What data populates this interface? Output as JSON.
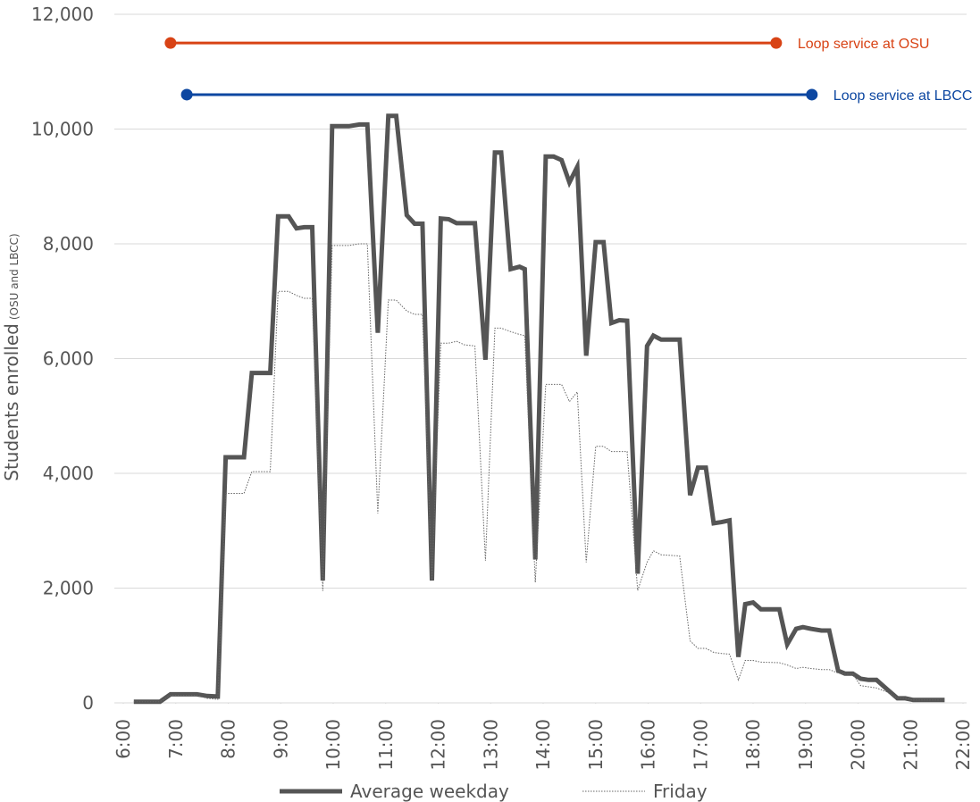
{
  "chart_data": {
    "type": "line",
    "ylabel": "Students enrolled",
    "ylabel_note": "(OSU and LBCC)",
    "x": [
      6.2,
      6.7,
      6.9,
      7.4,
      7.6,
      7.8,
      7.95,
      8.3,
      8.45,
      8.8,
      8.95,
      9.15,
      9.3,
      9.45,
      9.6,
      9.8,
      9.98,
      10.3,
      10.5,
      10.65,
      10.85,
      11.05,
      11.2,
      11.4,
      11.55,
      11.7,
      11.88,
      12.05,
      12.2,
      12.35,
      12.5,
      12.7,
      12.9,
      13.08,
      13.2,
      13.38,
      13.55,
      13.65,
      13.85,
      14.05,
      14.2,
      14.35,
      14.5,
      14.65,
      14.82,
      15.0,
      15.15,
      15.3,
      15.45,
      15.6,
      15.8,
      15.98,
      16.1,
      16.25,
      16.6,
      16.8,
      16.95,
      17.1,
      17.25,
      17.4,
      17.55,
      17.72,
      17.85,
      18.0,
      18.15,
      18.5,
      18.65,
      18.82,
      18.95,
      19.1,
      19.3,
      19.45,
      19.62,
      19.75,
      19.9,
      20.05,
      20.2,
      20.35,
      20.55,
      20.75,
      20.9,
      21.05,
      21.65
    ],
    "series": [
      {
        "name": "Average weekday",
        "color": "#555555",
        "style": "solid",
        "values": [
          20,
          20,
          150,
          150,
          120,
          110,
          4280,
          4280,
          5750,
          5750,
          8480,
          8480,
          8270,
          8290,
          8290,
          2130,
          10050,
          10050,
          10080,
          10080,
          6450,
          10230,
          10230,
          8500,
          8350,
          8350,
          2130,
          8440,
          8430,
          8360,
          8360,
          8360,
          5980,
          9590,
          9590,
          7560,
          7600,
          7560,
          2500,
          9520,
          9520,
          9460,
          9070,
          9340,
          6050,
          8030,
          8030,
          6620,
          6670,
          6660,
          2250,
          6220,
          6400,
          6330,
          6330,
          3620,
          4100,
          4100,
          3130,
          3150,
          3180,
          800,
          1720,
          1750,
          1630,
          1630,
          1020,
          1290,
          1320,
          1290,
          1260,
          1260,
          560,
          510,
          510,
          420,
          400,
          400,
          240,
          80,
          80,
          50,
          50
        ]
      },
      {
        "name": "Friday",
        "color": "#666666",
        "style": "dotted",
        "values": [
          20,
          20,
          130,
          130,
          80,
          60,
          3650,
          3650,
          4030,
          4030,
          7170,
          7170,
          7100,
          7050,
          7050,
          1950,
          7970,
          7970,
          8000,
          8000,
          3300,
          7020,
          7020,
          6830,
          6770,
          6770,
          2150,
          6270,
          6270,
          6300,
          6240,
          6220,
          2480,
          6530,
          6530,
          6470,
          6420,
          6400,
          2100,
          5550,
          5550,
          5550,
          5250,
          5420,
          2450,
          4470,
          4470,
          4380,
          4380,
          4380,
          1960,
          2450,
          2650,
          2580,
          2560,
          1080,
          950,
          950,
          880,
          860,
          850,
          400,
          740,
          740,
          710,
          700,
          660,
          600,
          620,
          600,
          580,
          580,
          520,
          500,
          500,
          300,
          280,
          260,
          190,
          80,
          80,
          50,
          50
        ]
      }
    ],
    "annotations": [
      {
        "label": "Loop service at OSU",
        "color": "#d84315",
        "x": [
          6.9,
          18.44
        ],
        "y": 11500
      },
      {
        "label": "Loop service at LBCC",
        "color": "#0d47a1",
        "x": [
          7.21,
          19.12
        ],
        "y": 10600
      }
    ],
    "xlim": [
      6,
      22
    ],
    "xticks": [
      {
        "value": 6,
        "label": "6:00"
      },
      {
        "value": 7,
        "label": "7:00"
      },
      {
        "value": 8,
        "label": "8:00"
      },
      {
        "value": 9,
        "label": "9:00"
      },
      {
        "value": 10,
        "label": "10:00"
      },
      {
        "value": 11,
        "label": "11:00"
      },
      {
        "value": 12,
        "label": "12:00"
      },
      {
        "value": 13,
        "label": "13:00"
      },
      {
        "value": 14,
        "label": "14:00"
      },
      {
        "value": 15,
        "label": "15:00"
      },
      {
        "value": 16,
        "label": "16:00"
      },
      {
        "value": 17,
        "label": "17:00"
      },
      {
        "value": 18,
        "label": "18:00"
      },
      {
        "value": 19,
        "label": "19:00"
      },
      {
        "value": 20,
        "label": "20:00"
      },
      {
        "value": 21,
        "label": "21:00"
      },
      {
        "value": 22,
        "label": "22:00"
      }
    ],
    "ylim": [
      0,
      12000
    ],
    "yticks": [
      0,
      {
        "value": 2000,
        "label": "2,000"
      },
      {
        "value": 4000,
        "label": "4,000"
      },
      {
        "value": 6000,
        "label": "6,000"
      },
      {
        "value": 8000,
        "label": "8,000"
      },
      {
        "value": 10000,
        "label": "10,000"
      },
      {
        "value": 12000,
        "label": "12,000"
      }
    ],
    "grid": true,
    "legend": "bottom"
  }
}
